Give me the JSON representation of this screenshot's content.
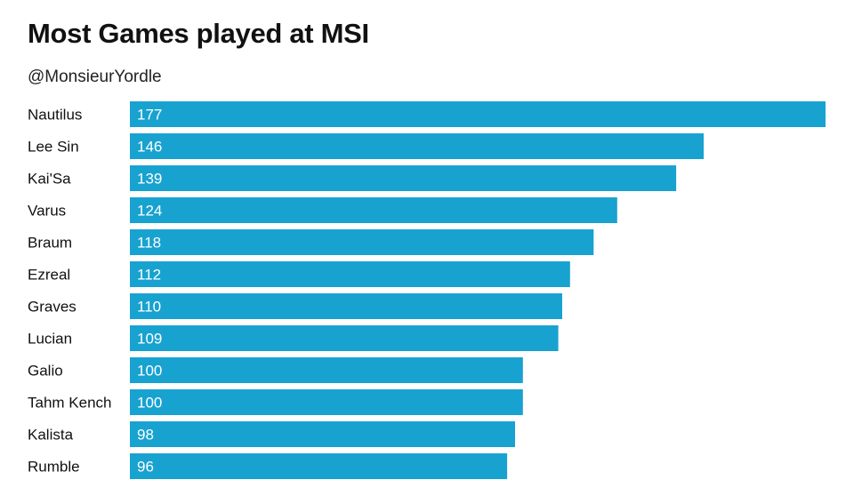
{
  "chart_data": {
    "type": "bar",
    "orientation": "horizontal",
    "title": "Most Games played at MSI",
    "subtitle": "@MonsieurYordle",
    "xlabel": "",
    "ylabel": "",
    "categories": [
      "Nautilus",
      "Lee Sin",
      "Kai'Sa",
      "Varus",
      "Braum",
      "Ezreal",
      "Graves",
      "Lucian",
      "Galio",
      "Tahm Kench",
      "Kalista",
      "Rumble"
    ],
    "values": [
      177,
      146,
      139,
      124,
      118,
      112,
      110,
      109,
      100,
      100,
      98,
      96
    ],
    "xlim": [
      0,
      177
    ],
    "grid": false,
    "legend": "none",
    "bar_color": "#18a2cf",
    "data_labels": "inside-start"
  }
}
